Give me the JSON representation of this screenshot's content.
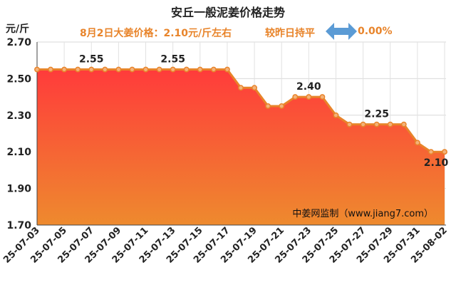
{
  "title": "安丘一般泥姜价格走势",
  "unit_label": "元/斤",
  "subtitle": {
    "price_text": "8月2日大姜价格：2.10元/斤左右",
    "compare_text": "较昨日持平",
    "change_text": "0.00%"
  },
  "watermark": "中姜网监制（www.jiang7.com）",
  "colors": {
    "line": "#e8842a",
    "fill_top": "#ff3b3b",
    "fill_bottom": "#ee8a2e",
    "arrow": "#5b9bd5",
    "subtitle": "#e8842a"
  },
  "chart_data": {
    "type": "area",
    "title": "安丘一般泥姜价格走势",
    "ylabel": "元/斤",
    "ylim": [
      1.7,
      2.7
    ],
    "yticks": [
      1.7,
      1.9,
      2.1,
      2.3,
      2.5,
      2.7
    ],
    "ytick_labels": [
      "1.70",
      "1.90",
      "2.10",
      "2.30",
      "2.50",
      "2.70"
    ],
    "grid": true,
    "x": [
      "25-07-03",
      "25-07-04",
      "25-07-05",
      "25-07-06",
      "25-07-07",
      "25-07-08",
      "25-07-09",
      "25-07-10",
      "25-07-11",
      "25-07-12",
      "25-07-13",
      "25-07-14",
      "25-07-15",
      "25-07-16",
      "25-07-17",
      "25-07-18",
      "25-07-19",
      "25-07-20",
      "25-07-21",
      "25-07-22",
      "25-07-23",
      "25-07-24",
      "25-07-25",
      "25-07-26",
      "25-07-27",
      "25-07-28",
      "25-07-29",
      "25-07-30",
      "25-07-31",
      "25-08-01",
      "25-08-02"
    ],
    "xtick_labels": [
      "25-07-03",
      "25-07-05",
      "25-07-07",
      "25-07-09",
      "25-07-11",
      "25-07-13",
      "25-07-15",
      "25-07-17",
      "25-07-19",
      "25-07-21",
      "25-07-23",
      "25-07-25",
      "25-07-27",
      "25-07-29",
      "25-07-31",
      "25-08-02"
    ],
    "values": [
      2.55,
      2.55,
      2.55,
      2.55,
      2.55,
      2.55,
      2.55,
      2.55,
      2.55,
      2.55,
      2.55,
      2.55,
      2.55,
      2.55,
      2.55,
      2.45,
      2.45,
      2.35,
      2.35,
      2.4,
      2.4,
      2.4,
      2.3,
      2.25,
      2.25,
      2.25,
      2.25,
      2.25,
      2.15,
      2.1,
      2.1
    ],
    "annotations": [
      {
        "x": "25-07-07",
        "text": "2.55"
      },
      {
        "x": "25-07-13",
        "text": "2.55"
      },
      {
        "x": "25-07-23",
        "text": "2.40"
      },
      {
        "x": "25-07-28",
        "text": "2.25"
      },
      {
        "x": "25-08-02",
        "text": "2.10"
      }
    ]
  }
}
